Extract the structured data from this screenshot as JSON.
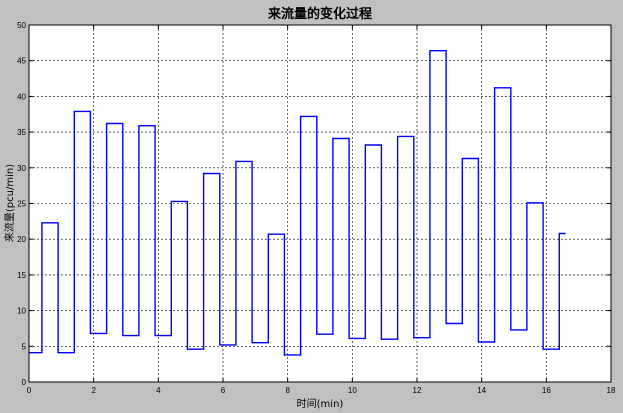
{
  "chart_data": {
    "type": "line",
    "title": "来流量的变化过程",
    "xlabel": "时间(min)",
    "ylabel": "来流量(pcu/min)",
    "xlim": [
      0,
      18
    ],
    "ylim": [
      0,
      50
    ],
    "xticks": [
      "0",
      "2",
      "4",
      "6",
      "8",
      "10",
      "12",
      "14",
      "16",
      "18"
    ],
    "yticks": [
      "0",
      "5",
      "10",
      "15",
      "20",
      "25",
      "30",
      "35",
      "40",
      "45",
      "50"
    ],
    "grid": true,
    "series": [
      {
        "color": "#0000ff",
        "x": [
          0,
          0.4,
          0.4,
          0.9,
          0.9,
          1.4,
          1.4,
          1.9,
          1.9,
          2.4,
          2.4,
          2.9,
          2.9,
          3.4,
          3.4,
          3.9,
          3.9,
          4.4,
          4.4,
          4.9,
          4.9,
          5.4,
          5.4,
          5.9,
          5.9,
          6.4,
          6.4,
          6.9,
          6.9,
          7.4,
          7.4,
          7.9,
          7.9,
          8.4,
          8.4,
          8.9,
          8.9,
          9.4,
          9.4,
          9.9,
          9.9,
          10.4,
          10.4,
          10.9,
          10.9,
          11.4,
          11.4,
          11.9,
          11.9,
          12.4,
          12.4,
          12.9,
          12.9,
          13.4,
          13.4,
          13.9,
          13.9,
          14.4,
          14.4,
          14.9,
          14.9,
          15.4,
          15.4,
          15.9,
          15.9,
          16.4,
          16.4,
          16.6
        ],
        "y": [
          4.1,
          4.1,
          22.3,
          22.3,
          4.1,
          4.1,
          37.9,
          37.9,
          6.8,
          6.8,
          36.2,
          36.2,
          6.5,
          6.5,
          35.9,
          35.9,
          6.5,
          6.5,
          25.3,
          25.3,
          4.6,
          4.6,
          29.2,
          29.2,
          5.2,
          5.2,
          30.9,
          30.9,
          5.5,
          5.5,
          20.7,
          20.7,
          3.8,
          3.8,
          37.2,
          37.2,
          6.7,
          6.7,
          34.1,
          34.1,
          6.1,
          6.1,
          33.2,
          33.2,
          6.0,
          6.0,
          34.4,
          34.4,
          6.2,
          6.2,
          46.4,
          46.4,
          8.2,
          8.2,
          31.3,
          31.3,
          5.6,
          5.6,
          41.2,
          41.2,
          7.3,
          7.3,
          25.1,
          25.1,
          4.6,
          4.6,
          20.8,
          20.8
        ]
      }
    ]
  }
}
